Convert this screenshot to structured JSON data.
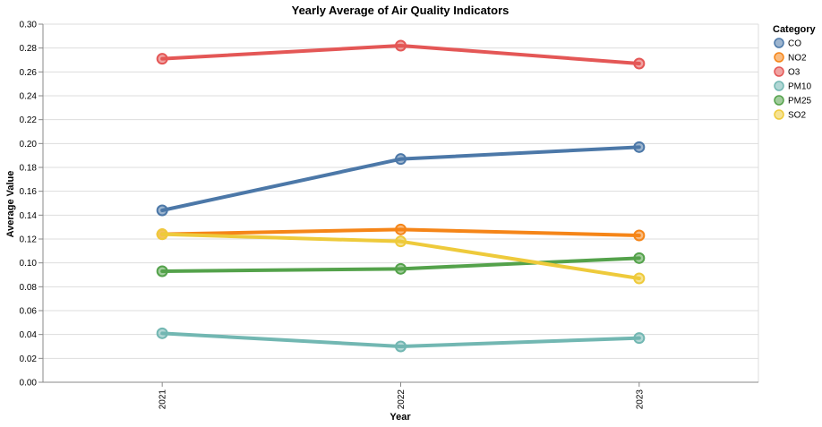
{
  "chart_data": {
    "type": "line",
    "title": "Yearly Average of Air Quality Indicators",
    "xlabel": "Year",
    "ylabel": "Average Value",
    "categories": [
      "2021",
      "2022",
      "2023"
    ],
    "ylim": [
      0,
      0.3
    ],
    "yticks": [
      "0.00",
      "0.02",
      "0.04",
      "0.06",
      "0.08",
      "0.10",
      "0.12",
      "0.14",
      "0.16",
      "0.18",
      "0.20",
      "0.22",
      "0.24",
      "0.26",
      "0.28",
      "0.30"
    ],
    "grid": true,
    "legend": {
      "title": "Category",
      "placement": "right"
    },
    "series": [
      {
        "name": "CO",
        "color": "#4c78a8",
        "values": [
          0.144,
          0.187,
          0.197
        ]
      },
      {
        "name": "NO2",
        "color": "#f58518",
        "values": [
          0.124,
          0.128,
          0.123
        ]
      },
      {
        "name": "O3",
        "color": "#e45756",
        "values": [
          0.271,
          0.282,
          0.267
        ]
      },
      {
        "name": "PM10",
        "color": "#72b7b2",
        "values": [
          0.041,
          0.03,
          0.037
        ]
      },
      {
        "name": "PM25",
        "color": "#54a24b",
        "values": [
          0.093,
          0.095,
          0.104
        ]
      },
      {
        "name": "SO2",
        "color": "#eeca3b",
        "values": [
          0.124,
          0.118,
          0.087
        ]
      }
    ]
  }
}
